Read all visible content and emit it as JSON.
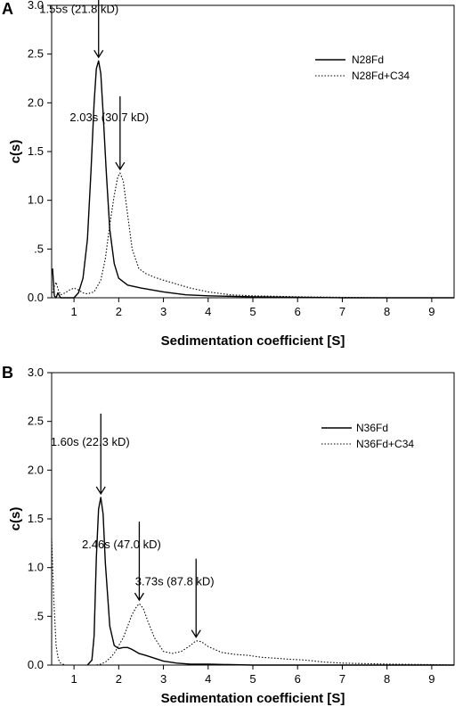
{
  "chart_data": [
    {
      "panel_label": "A",
      "type": "line",
      "xlabel": "Sedimentation coefficient [S]",
      "ylabel": "c(s)",
      "xlim": [
        0.5,
        9.5
      ],
      "ylim": [
        0,
        3.0
      ],
      "xticks": [
        1,
        2,
        3,
        4,
        5,
        6,
        7,
        8,
        9
      ],
      "yticks": [
        0,
        0.5,
        1.0,
        1.5,
        2.0,
        2.5,
        3.0
      ],
      "ytick_labels": [
        "0.0",
        ".5",
        "1.0",
        "1.5",
        "2.0",
        "2.5",
        "3.0"
      ],
      "grid": false,
      "legend_position": "top-right",
      "series": [
        {
          "name": "N28Fd",
          "style": "solid",
          "color": "#000000",
          "x": [
            0.52,
            0.56,
            0.6,
            0.64,
            0.7,
            0.8,
            1.0,
            1.1,
            1.2,
            1.3,
            1.38,
            1.45,
            1.5,
            1.55,
            1.6,
            1.65,
            1.72,
            1.8,
            1.9,
            2.0,
            2.2,
            2.5,
            3.0,
            3.5,
            4.0,
            5.0,
            6.0,
            7.0,
            8.0,
            9.0,
            9.5
          ],
          "y": [
            0.3,
            0.02,
            0.0,
            0.05,
            0.0,
            0.0,
            0.0,
            0.05,
            0.2,
            0.6,
            1.3,
            2.0,
            2.35,
            2.43,
            2.3,
            1.9,
            1.3,
            0.7,
            0.35,
            0.2,
            0.13,
            0.1,
            0.06,
            0.03,
            0.02,
            0.01,
            0.005,
            0.0,
            0.0,
            0.0,
            0.0
          ]
        },
        {
          "name": "N28Fd+C34",
          "style": "dotted",
          "color": "#000000",
          "x": [
            0.52,
            0.56,
            0.6,
            0.65,
            0.7,
            0.8,
            0.9,
            1.0,
            1.1,
            1.2,
            1.3,
            1.45,
            1.6,
            1.7,
            1.8,
            1.9,
            1.98,
            2.03,
            2.1,
            2.2,
            2.3,
            2.45,
            2.6,
            2.8,
            3.0,
            3.3,
            3.6,
            4.0,
            4.5,
            5.0,
            6.0,
            7.0,
            8.0,
            9.0,
            9.5
          ],
          "y": [
            0.05,
            0.12,
            0.16,
            0.08,
            0.03,
            0.05,
            0.08,
            0.1,
            0.08,
            0.05,
            0.04,
            0.06,
            0.18,
            0.4,
            0.75,
            1.05,
            1.24,
            1.28,
            1.2,
            0.85,
            0.5,
            0.3,
            0.25,
            0.21,
            0.18,
            0.14,
            0.1,
            0.06,
            0.03,
            0.02,
            0.01,
            0.005,
            0.0,
            0.0,
            0.0
          ]
        }
      ],
      "annotations": [
        {
          "text": "1.55s (21.8 kD)",
          "x": 1.55,
          "y": 2.43
        },
        {
          "text": "2.03s (30.7 kD)",
          "x": 2.03,
          "y": 1.28
        }
      ]
    },
    {
      "panel_label": "B",
      "type": "line",
      "xlabel": "Sedimentation coefficient [S]",
      "ylabel": "c(s)",
      "xlim": [
        0.5,
        9.5
      ],
      "ylim": [
        0,
        3.0
      ],
      "xticks": [
        1,
        2,
        3,
        4,
        5,
        6,
        7,
        8,
        9
      ],
      "yticks": [
        0,
        0.5,
        1.0,
        1.5,
        2.0,
        2.5,
        3.0
      ],
      "ytick_labels": [
        "0.0",
        ".5",
        "1.0",
        "1.5",
        "2.0",
        "2.5",
        "3.0"
      ],
      "grid": false,
      "legend_position": "top-right",
      "series": [
        {
          "name": "N36Fd",
          "style": "solid",
          "color": "#000000",
          "x": [
            1.3,
            1.4,
            1.45,
            1.5,
            1.55,
            1.6,
            1.65,
            1.7,
            1.8,
            1.9,
            2.0,
            2.1,
            2.2,
            2.3,
            2.45,
            2.6,
            2.8,
            3.0,
            3.3,
            3.6,
            4.0,
            4.5,
            5.0,
            5.5,
            6.0,
            7.0,
            8.0,
            9.0,
            9.5
          ],
          "y": [
            0.0,
            0.05,
            0.3,
            1.1,
            1.6,
            1.72,
            1.55,
            1.05,
            0.4,
            0.2,
            0.17,
            0.18,
            0.18,
            0.16,
            0.12,
            0.1,
            0.07,
            0.04,
            0.02,
            0.01,
            0.01,
            0.005,
            0.0,
            0.0,
            0.0,
            0.0,
            0.0,
            0.0,
            0.0
          ]
        },
        {
          "name": "N36Fd+C34",
          "style": "dotted",
          "color": "#000000",
          "x": [
            0.5,
            0.55,
            0.6,
            0.65,
            0.7,
            0.8,
            1.0,
            1.2,
            1.4,
            1.5,
            1.6,
            1.7,
            1.8,
            1.9,
            2.0,
            2.1,
            2.2,
            2.3,
            2.4,
            2.46,
            2.55,
            2.65,
            2.8,
            3.0,
            3.2,
            3.4,
            3.6,
            3.73,
            3.85,
            4.0,
            4.3,
            4.6,
            4.9,
            5.2,
            5.5,
            5.8,
            6.2,
            6.6,
            7.0,
            8.0,
            9.0,
            9.5
          ],
          "y": [
            1.3,
            0.65,
            0.2,
            0.06,
            0.02,
            0.0,
            0.0,
            0.0,
            0.0,
            0.0,
            0.01,
            0.03,
            0.07,
            0.12,
            0.2,
            0.28,
            0.4,
            0.52,
            0.6,
            0.63,
            0.58,
            0.45,
            0.28,
            0.14,
            0.12,
            0.14,
            0.2,
            0.25,
            0.24,
            0.19,
            0.13,
            0.11,
            0.1,
            0.08,
            0.07,
            0.06,
            0.05,
            0.03,
            0.02,
            0.01,
            0.005,
            0.0
          ]
        }
      ],
      "annotations": [
        {
          "text": "1.60s (22.3 kD)",
          "x": 1.6,
          "y": 1.72
        },
        {
          "text": "2.46s (47.0 kD)",
          "x": 2.46,
          "y": 0.63
        },
        {
          "text": "3.73s (87.8 kD)",
          "x": 3.73,
          "y": 0.25
        }
      ]
    }
  ]
}
